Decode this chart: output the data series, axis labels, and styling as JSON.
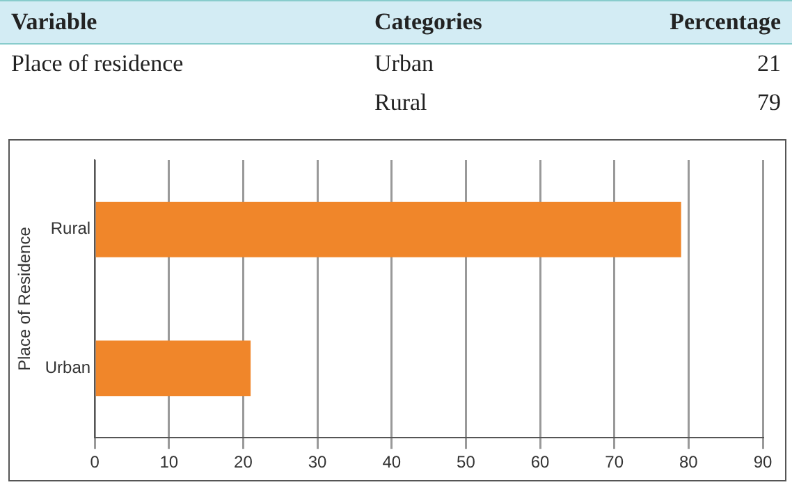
{
  "chart_data": {
    "type": "bar",
    "orientation": "horizontal",
    "categories": [
      "Rural",
      "Urban"
    ],
    "values": [
      79,
      21
    ],
    "color": "#f0862a",
    "xlim": [
      0,
      90
    ],
    "xticks": [
      0,
      10,
      20,
      30,
      40,
      50,
      60,
      70,
      80,
      90
    ],
    "ylabel": "Place of Residence",
    "grid": "x",
    "legend": false,
    "annotations": [
      "Variable",
      "Categories",
      "Percentage",
      "Place of residence",
      "Urban",
      "21",
      "Rural",
      "79"
    ]
  }
}
